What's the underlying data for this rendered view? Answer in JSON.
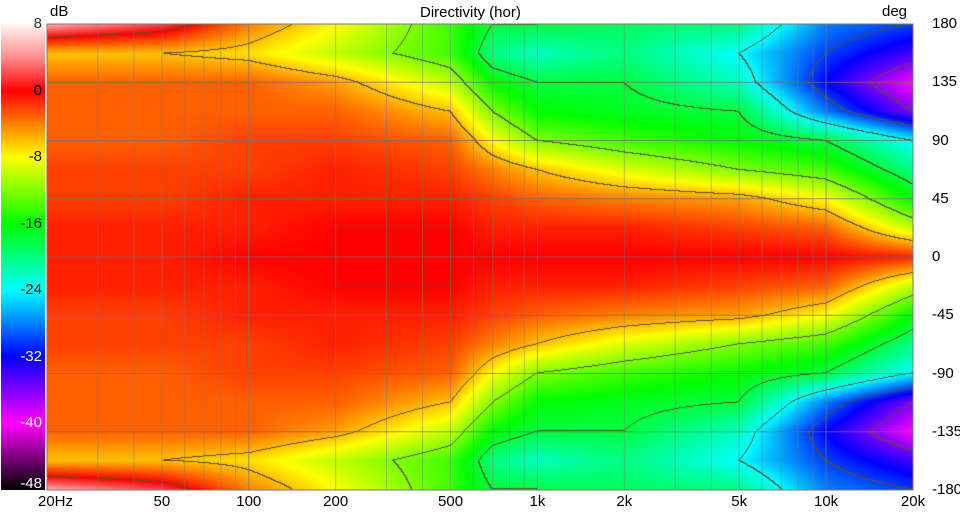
{
  "chart_data": {
    "type": "heatmap",
    "title": "Directivity (hor)",
    "colorbar_label": "dB",
    "y_axis_label": "deg",
    "x_scale": "log",
    "x_range": [
      20,
      20000
    ],
    "y_range": [
      -180,
      180
    ],
    "color_range": [
      -48,
      8
    ],
    "grid": true,
    "contours": true,
    "x_tick_labels": [
      {
        "value": 20,
        "label": "20Hz"
      },
      {
        "value": 50,
        "label": "50"
      },
      {
        "value": 100,
        "label": "100"
      },
      {
        "value": 200,
        "label": "200"
      },
      {
        "value": 500,
        "label": "500"
      },
      {
        "value": 1000,
        "label": "1k"
      },
      {
        "value": 2000,
        "label": "2k"
      },
      {
        "value": 5000,
        "label": "5k"
      },
      {
        "value": 10000,
        "label": "10k"
      },
      {
        "value": 20000,
        "label": "20k"
      }
    ],
    "y_ticks": [
      180,
      135,
      90,
      45,
      0,
      -45,
      -90,
      -135,
      -180
    ],
    "colorbar_ticks": [
      8,
      0,
      -8,
      -16,
      -24,
      -32,
      -40,
      -48
    ],
    "colormap": [
      {
        "db": 8,
        "color": "#fff4f4"
      },
      {
        "db": 4,
        "color": "#ff8c8c"
      },
      {
        "db": 0,
        "color": "#ff0000"
      },
      {
        "db": -4,
        "color": "#ff8000"
      },
      {
        "db": -8,
        "color": "#ffff00"
      },
      {
        "db": -12,
        "color": "#80ff00"
      },
      {
        "db": -16,
        "color": "#00ff00"
      },
      {
        "db": -20,
        "color": "#00ff80"
      },
      {
        "db": -24,
        "color": "#00ffff"
      },
      {
        "db": -28,
        "color": "#0080ff"
      },
      {
        "db": -32,
        "color": "#0000ff"
      },
      {
        "db": -36,
        "color": "#8000ff"
      },
      {
        "db": -40,
        "color": "#ff00ff"
      },
      {
        "db": -44,
        "color": "#800080"
      },
      {
        "db": -48,
        "color": "#000000"
      }
    ],
    "frequencies": [
      20,
      50,
      100,
      200,
      500,
      700,
      1000,
      2000,
      5000,
      10000,
      20000
    ],
    "angles": [
      180,
      157.5,
      135,
      112.5,
      90,
      67.5,
      45,
      22.5,
      0,
      -22.5,
      -45,
      -67.5,
      -90,
      -112.5,
      -135,
      -157.5,
      -180
    ],
    "values": [
      [
        5,
        2,
        -4,
        -8,
        -14,
        -18,
        -18,
        -19,
        -20,
        -28,
        -30
      ],
      [
        -6,
        -6,
        -7,
        -10,
        -14,
        -20,
        -22,
        -20,
        -24,
        -30,
        -34
      ],
      [
        -3,
        -3,
        -3,
        -5,
        -10,
        -16,
        -18,
        -18,
        -22,
        -32,
        -40
      ],
      [
        -3,
        -3,
        -3,
        -3,
        -6,
        -12,
        -16,
        -17,
        -18,
        -28,
        -36
      ],
      [
        -3,
        -3,
        -2,
        -2,
        -3,
        -8,
        -12,
        -14,
        -16,
        -18,
        -24
      ],
      [
        -2,
        -2,
        -2,
        -1,
        -2,
        -4,
        -6,
        -9,
        -12,
        -14,
        -20
      ],
      [
        -2,
        -2,
        -1,
        -1,
        -1,
        -2,
        -3,
        -4,
        -5,
        -8,
        -16
      ],
      [
        -1,
        -1,
        -1,
        0,
        0,
        -1,
        -1,
        -1,
        -2,
        -3,
        -10
      ],
      [
        -1,
        -1,
        0,
        0,
        0,
        0,
        0,
        0,
        0,
        0,
        -1
      ],
      [
        -1,
        -1,
        -1,
        0,
        0,
        -1,
        -1,
        -1,
        -2,
        -3,
        -10
      ],
      [
        -2,
        -2,
        -1,
        -1,
        -1,
        -2,
        -3,
        -4,
        -5,
        -8,
        -16
      ],
      [
        -2,
        -2,
        -2,
        -1,
        -2,
        -4,
        -6,
        -9,
        -12,
        -14,
        -20
      ],
      [
        -3,
        -3,
        -2,
        -2,
        -3,
        -8,
        -12,
        -14,
        -16,
        -18,
        -24
      ],
      [
        -3,
        -3,
        -3,
        -3,
        -6,
        -12,
        -16,
        -17,
        -18,
        -28,
        -36
      ],
      [
        -3,
        -3,
        -3,
        -5,
        -10,
        -16,
        -18,
        -18,
        -22,
        -32,
        -40
      ],
      [
        -6,
        -6,
        -7,
        -10,
        -14,
        -20,
        -22,
        -20,
        -24,
        -30,
        -34
      ],
      [
        5,
        2,
        -4,
        -8,
        -14,
        -18,
        -18,
        -19,
        -20,
        -28,
        -30
      ]
    ]
  }
}
